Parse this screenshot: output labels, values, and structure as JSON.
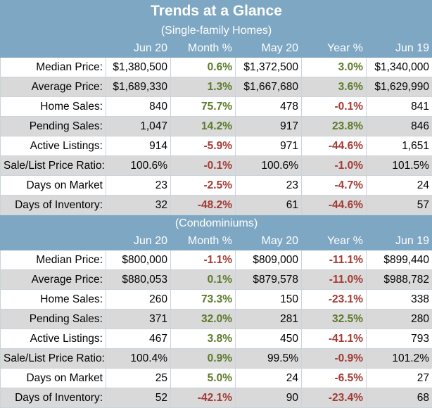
{
  "title": "Trends at a Glance",
  "colors": {
    "band": "#7ea7c3",
    "gray_row": "#d9d9d9",
    "positive": "#5b7a2a",
    "negative": "#a33a33"
  },
  "sections": [
    {
      "subtitle": "(Single-family Homes)",
      "headers": [
        "",
        "Jun 20",
        "Month %",
        "May 20",
        "Year %",
        "Jun 19"
      ],
      "rows": [
        {
          "label": "Median Price:",
          "jun20": "$1,380,500",
          "month_pct": "0.6%",
          "may20": "$1,372,500",
          "year_pct": "3.0%",
          "jun19": "$1,340,000"
        },
        {
          "label": "Average Price:",
          "jun20": "$1,689,330",
          "month_pct": "1.3%",
          "may20": "$1,667,680",
          "year_pct": "3.6%",
          "jun19": "$1,629,990"
        },
        {
          "label": "Home Sales:",
          "jun20": "840",
          "month_pct": "75.7%",
          "may20": "478",
          "year_pct": "-0.1%",
          "jun19": "841"
        },
        {
          "label": "Pending Sales:",
          "jun20": "1,047",
          "month_pct": "14.2%",
          "may20": "917",
          "year_pct": "23.8%",
          "jun19": "846"
        },
        {
          "label": "Active Listings:",
          "jun20": "914",
          "month_pct": "-5.9%",
          "may20": "971",
          "year_pct": "-44.6%",
          "jun19": "1,651"
        },
        {
          "label": "Sale/List Price Ratio:",
          "jun20": "100.6%",
          "month_pct": "-0.1%",
          "may20": "100.6%",
          "year_pct": "-1.0%",
          "jun19": "101.5%"
        },
        {
          "label": "Days on Market",
          "jun20": "23",
          "month_pct": "-2.5%",
          "may20": "23",
          "year_pct": "-4.7%",
          "jun19": "24"
        },
        {
          "label": "Days of Inventory:",
          "jun20": "32",
          "month_pct": "-48.2%",
          "may20": "61",
          "year_pct": "-44.6%",
          "jun19": "57"
        }
      ]
    },
    {
      "subtitle": "(Condominiums)",
      "headers": [
        "",
        "Jun 20",
        "Month %",
        "May 20",
        "Year %",
        "Jun 19"
      ],
      "rows": [
        {
          "label": "Median Price:",
          "jun20": "$800,000",
          "month_pct": "-1.1%",
          "may20": "$809,000",
          "year_pct": "-11.1%",
          "jun19": "$899,440"
        },
        {
          "label": "Average Price:",
          "jun20": "$880,053",
          "month_pct": "0.1%",
          "may20": "$879,578",
          "year_pct": "-11.0%",
          "jun19": "$988,782"
        },
        {
          "label": "Home Sales:",
          "jun20": "260",
          "month_pct": "73.3%",
          "may20": "150",
          "year_pct": "-23.1%",
          "jun19": "338"
        },
        {
          "label": "Pending Sales:",
          "jun20": "371",
          "month_pct": "32.0%",
          "may20": "281",
          "year_pct": "32.5%",
          "jun19": "280"
        },
        {
          "label": "Active Listings:",
          "jun20": "467",
          "month_pct": "3.8%",
          "may20": "450",
          "year_pct": "-41.1%",
          "jun19": "793"
        },
        {
          "label": "Sale/List Price Ratio:",
          "jun20": "100.4%",
          "month_pct": "0.9%",
          "may20": "99.5%",
          "year_pct": "-0.9%",
          "jun19": "101.2%"
        },
        {
          "label": "Days on Market",
          "jun20": "25",
          "month_pct": "5.0%",
          "may20": "24",
          "year_pct": "-6.5%",
          "jun19": "27"
        },
        {
          "label": "Days of Inventory:",
          "jun20": "52",
          "month_pct": "-42.1%",
          "may20": "90",
          "year_pct": "-23.4%",
          "jun19": "68"
        }
      ]
    }
  ]
}
